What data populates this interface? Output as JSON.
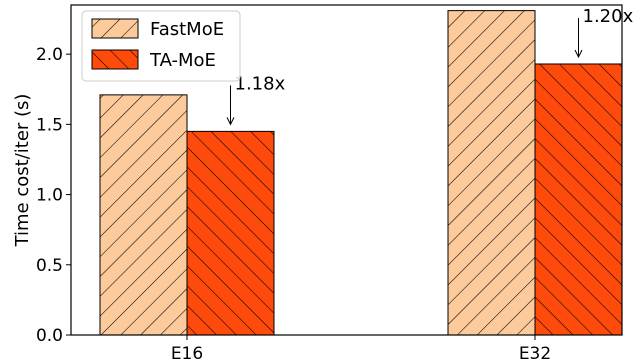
{
  "chart_data": {
    "type": "bar",
    "title": "",
    "xlabel": "",
    "ylabel": "Time cost/iter (s)",
    "categories": [
      "E16",
      "E32"
    ],
    "ylim": [
      0,
      2.35
    ],
    "yticks": [
      "0.0",
      "0.5",
      "1.0",
      "1.5",
      "2.0"
    ],
    "series": [
      {
        "name": "FastMoE",
        "values": [
          1.71,
          2.31
        ],
        "color": "#fdca9b",
        "hatch": "forward"
      },
      {
        "name": "TA-MoE",
        "values": [
          1.45,
          1.93
        ],
        "color": "#fe4a0a",
        "hatch": "backward"
      }
    ],
    "annotations": [
      {
        "category": "E16",
        "series": "TA-MoE",
        "text": "1.18x"
      },
      {
        "category": "E32",
        "series": "TA-MoE",
        "text": "1.20x"
      }
    ],
    "legend": {
      "position": "top-left"
    },
    "grid": false
  }
}
